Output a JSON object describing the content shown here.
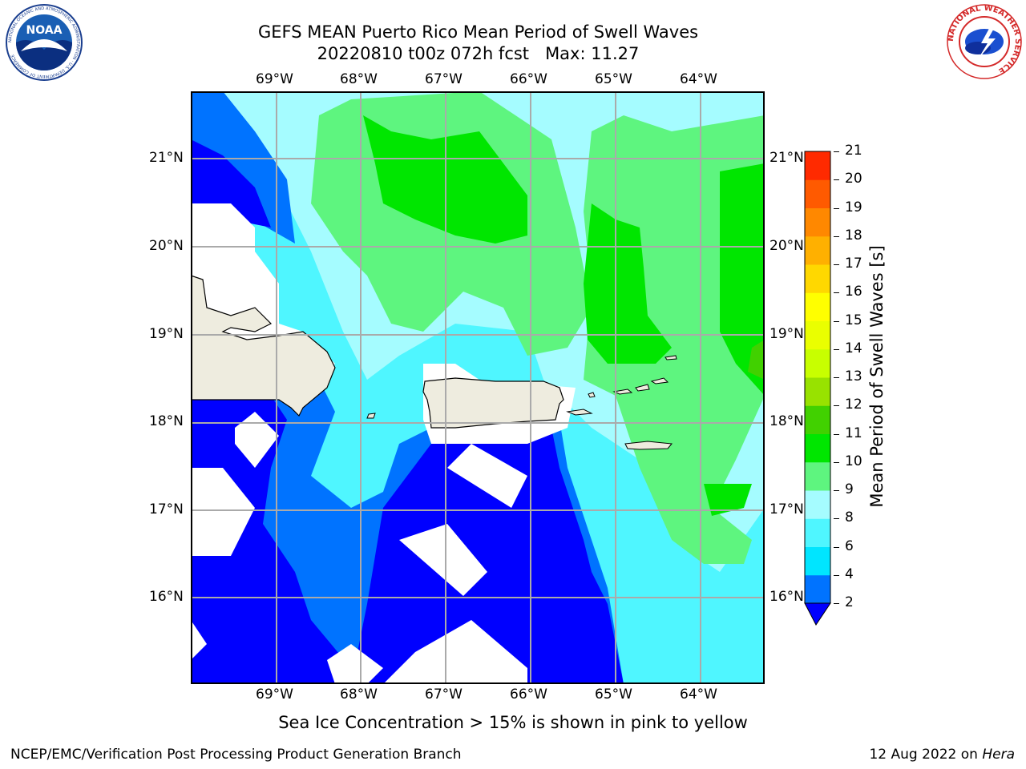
{
  "title": {
    "line1": "GEFS MEAN Puerto Rico Mean Period of Swell Waves",
    "line2": "20220810 t00z 072h fcst   Max: 11.27"
  },
  "logos": {
    "left": {
      "name": "NOAA",
      "text": "NOAA",
      "ring_text": "NATIONAL OCEANIC AND ATMOSPHERIC ADMINISTRATION · U.S. DEPARTMENT OF COMMERCE"
    },
    "right": {
      "name": "National Weather Service",
      "ring_text": "NATIONAL WEATHER SERVICE"
    }
  },
  "map": {
    "lon_labels": [
      "69°W",
      "68°W",
      "67°W",
      "66°W",
      "65°W",
      "64°W"
    ],
    "lat_labels": [
      "21°N",
      "20°N",
      "19°N",
      "18°N",
      "17°N",
      "16°N"
    ],
    "land_color": "#eeecdf"
  },
  "colorbar": {
    "label": "Mean Period of Swell Waves [s]",
    "ticks": [
      "2",
      "4",
      "6",
      "8",
      "9",
      "10",
      "11",
      "12",
      "13",
      "14",
      "15",
      "16",
      "17",
      "18",
      "19",
      "20",
      "21"
    ],
    "colors": [
      "#0000ff",
      "#0073ff",
      "#00e5ff",
      "#4ff6ff",
      "#a5fcff",
      "#5ef57f",
      "#00e600",
      "#41d100",
      "#98e200",
      "#c8ff00",
      "#eaff00",
      "#ffff00",
      "#ffd800",
      "#ffb000",
      "#ff8800",
      "#ff5a00",
      "#ff2a00",
      "#ff0000"
    ]
  },
  "note": "Sea Ice Concentration > 15% is shown in pink to yellow",
  "footer": {
    "left": "NCEP/EMC/Verification Post Processing Product Generation Branch",
    "right_date": "12 Aug 2022 on ",
    "right_machine": "Hera"
  }
}
